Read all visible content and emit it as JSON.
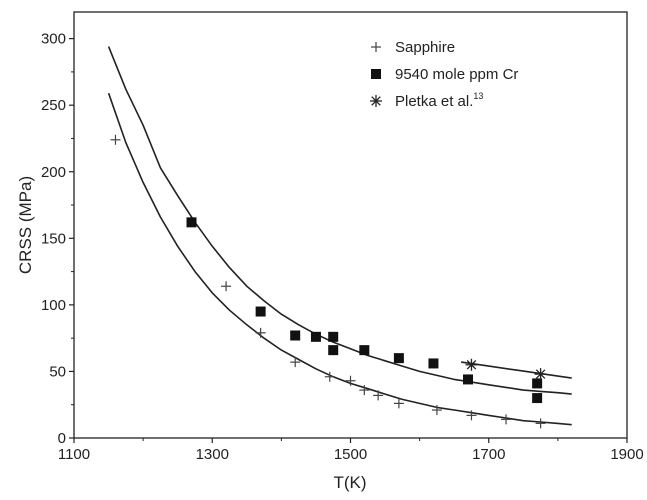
{
  "chart_data": {
    "type": "scatter",
    "title": "",
    "xlabel": "T(K)",
    "ylabel": "CRSS (MPa)",
    "xlim": [
      1100,
      1900
    ],
    "ylim": [
      0,
      320
    ],
    "x_ticks": [
      1100,
      1300,
      1500,
      1700,
      1900
    ],
    "y_ticks": [
      0,
      50,
      100,
      150,
      200,
      250,
      300
    ],
    "grid": false,
    "legend_position": "top-right",
    "series": [
      {
        "name": "Sapphire",
        "marker": "plus",
        "x": [
          1160,
          1320,
          1370,
          1420,
          1470,
          1500,
          1520,
          1540,
          1570,
          1625,
          1675,
          1725,
          1775
        ],
        "y": [
          224,
          114,
          79,
          57,
          46,
          43,
          36,
          32,
          26,
          21,
          17,
          14,
          11
        ]
      },
      {
        "name": "9540 mole ppm Cr",
        "marker": "square",
        "x": [
          1270,
          1370,
          1420,
          1450,
          1475,
          1475,
          1520,
          1570,
          1620,
          1670,
          1770,
          1770
        ],
        "y": [
          162,
          95,
          77,
          76,
          76,
          66,
          66,
          60,
          56,
          44,
          41,
          30
        ]
      },
      {
        "name": "Pletka et al.",
        "name_superscript": "13",
        "marker": "asterisk",
        "x": [
          1675,
          1775
        ],
        "y": [
          55,
          48
        ]
      }
    ],
    "fit_curves": [
      {
        "name": "upper fit",
        "x": [
          1150,
          1175,
          1200,
          1225,
          1250,
          1275,
          1300,
          1325,
          1350,
          1375,
          1400,
          1425,
          1450,
          1475,
          1500,
          1525,
          1550,
          1575,
          1600,
          1625,
          1650,
          1675,
          1700,
          1725,
          1750,
          1775,
          1800,
          1820
        ],
        "y": [
          294,
          262,
          235,
          203,
          182,
          162,
          144,
          128,
          114,
          103,
          93,
          85,
          78,
          72,
          67,
          62,
          58,
          54,
          50,
          47,
          44,
          42,
          40,
          38,
          36,
          35,
          34,
          33
        ]
      },
      {
        "name": "lower fit",
        "x": [
          1150,
          1175,
          1200,
          1225,
          1250,
          1275,
          1300,
          1325,
          1350,
          1375,
          1400,
          1425,
          1450,
          1475,
          1500,
          1525,
          1550,
          1575,
          1600,
          1625,
          1650,
          1675,
          1700,
          1725,
          1750,
          1775,
          1800,
          1820
        ],
        "y": [
          259,
          222,
          192,
          166,
          144,
          125,
          109,
          96,
          85,
          75,
          66,
          59,
          52,
          46,
          41,
          37,
          33,
          29,
          26,
          23,
          21,
          19,
          17,
          15,
          13,
          12,
          11,
          10
        ]
      },
      {
        "name": "Pletka fit",
        "x": [
          1660,
          1700,
          1740,
          1780,
          1820
        ],
        "y": [
          57,
          54,
          51,
          48,
          45
        ]
      }
    ]
  }
}
